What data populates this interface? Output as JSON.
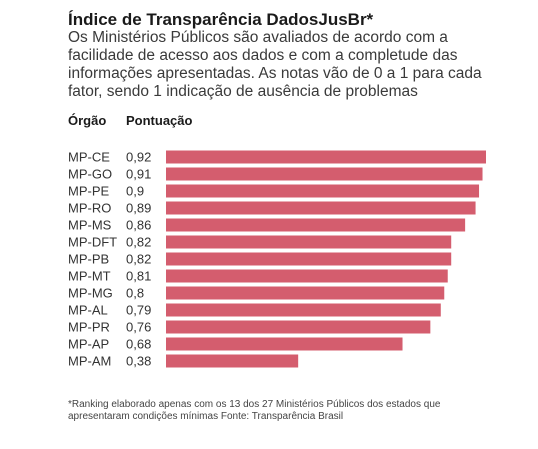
{
  "header": {
    "title": "Índice de Transparência DadosJusBr*",
    "subtitle": "Os Ministérios Públicos são avaliados de acordo com a facilidade de acesso aos dados e com a completude das informações apresentadas. As notas vão de 0 a 1 para cada fator, sendo 1 indicação de ausência de problemas"
  },
  "columns": {
    "org": "Órgão",
    "score": "Pontuação"
  },
  "footnote": "*Ranking elaborado apenas com os 13 dos 27 Ministérios Públicos dos estados que apresentaram condições mínimas Fonte: Transparência Brasil",
  "colors": {
    "bar": "#d45d6e"
  },
  "chart_data": {
    "type": "bar",
    "orientation": "horizontal",
    "categories": [
      "MP-CE",
      "MP-GO",
      "MP-PE",
      "MP-RO",
      "MP-MS",
      "MP-DFT",
      "MP-PB",
      "MP-MT",
      "MP-MG",
      "MP-AL",
      "MP-PR",
      "MP-AP",
      "MP-AM"
    ],
    "values": [
      0.92,
      0.91,
      0.9,
      0.89,
      0.86,
      0.82,
      0.82,
      0.81,
      0.8,
      0.79,
      0.76,
      0.68,
      0.38
    ],
    "value_labels": [
      "0,92",
      "0,91",
      "0,9",
      "0,89",
      "0,86",
      "0,82",
      "0,82",
      "0,81",
      "0,8",
      "0,79",
      "0,76",
      "0,68",
      "0,38"
    ],
    "xlim": [
      0,
      0.92
    ],
    "grid": false
  }
}
